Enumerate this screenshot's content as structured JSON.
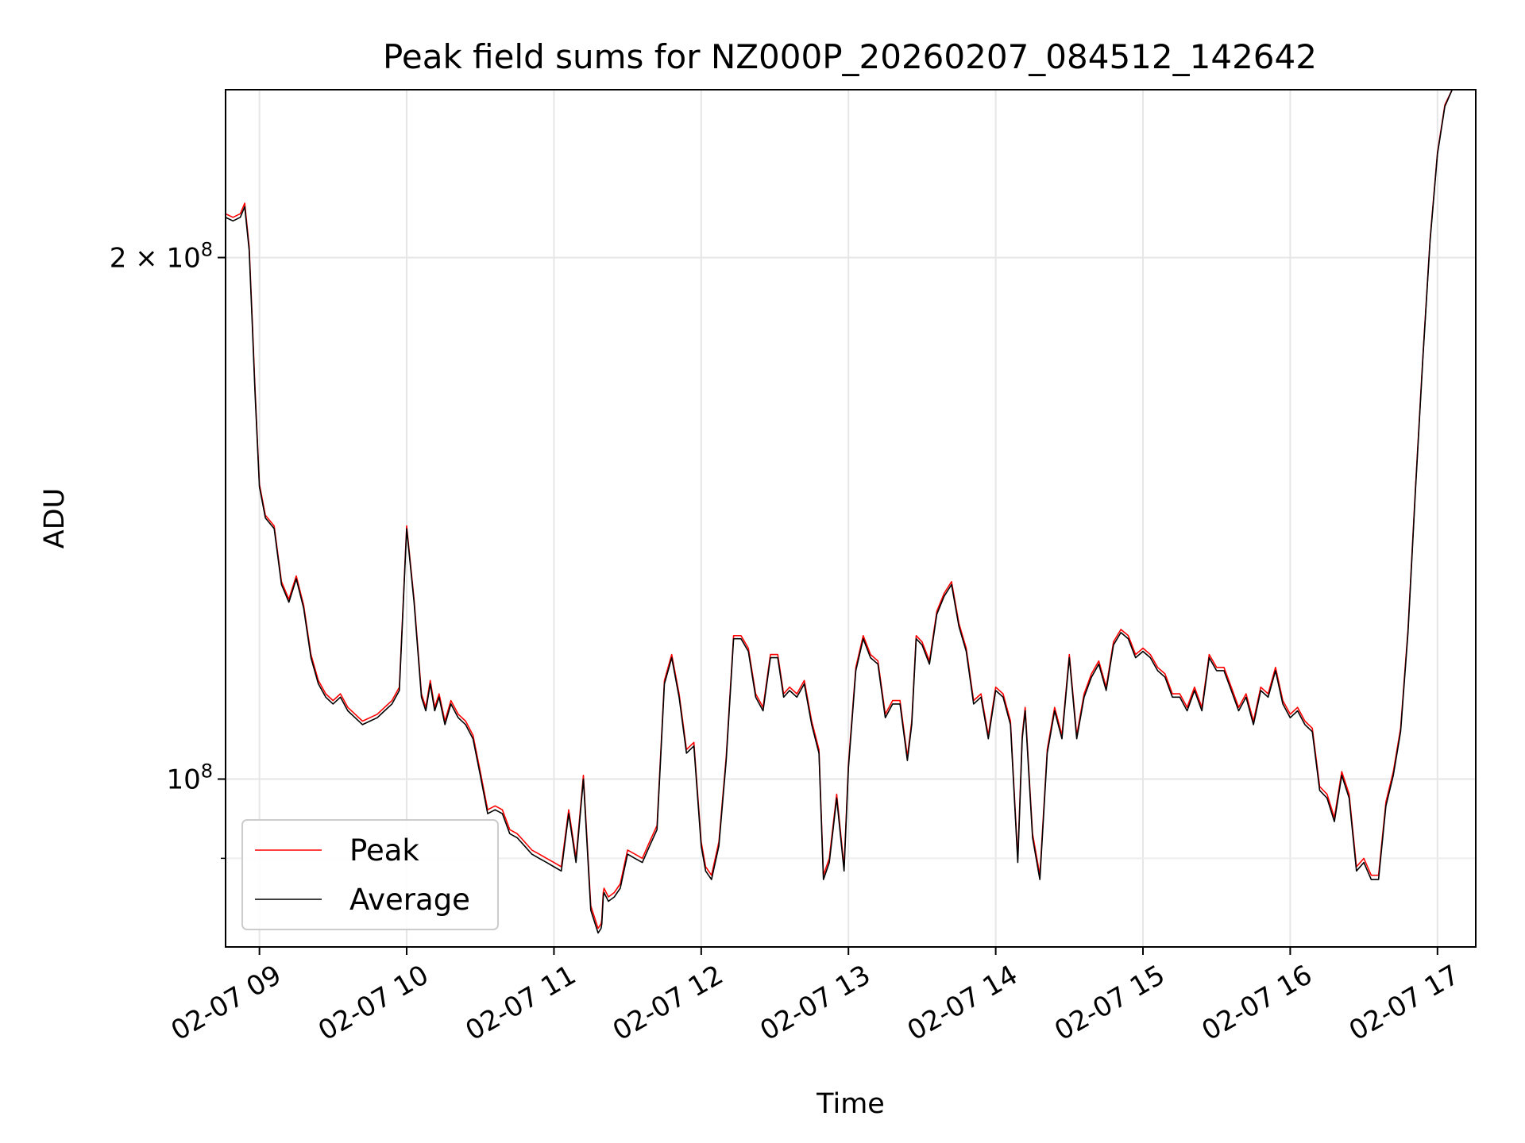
{
  "chart_data": {
    "type": "line",
    "title": "Peak field sums for NZ000P_20260207_084512_142642",
    "xlabel": "Time",
    "ylabel": "ADU",
    "yscale": "log",
    "xlim": [
      8.77,
      17.26
    ],
    "ylim": [
      80000000,
      250000000
    ],
    "x_ticks": [
      {
        "label": "02-07 09",
        "value": 9
      },
      {
        "label": "02-07 10",
        "value": 10
      },
      {
        "label": "02-07 11",
        "value": 11
      },
      {
        "label": "02-07 12",
        "value": 12
      },
      {
        "label": "02-07 13",
        "value": 13
      },
      {
        "label": "02-07 14",
        "value": 14
      },
      {
        "label": "02-07 15",
        "value": 15
      },
      {
        "label": "02-07 16",
        "value": 16
      },
      {
        "label": "02-07 17",
        "value": 17
      }
    ],
    "y_ticks": [
      {
        "label_base": "2 × 10",
        "label_exp": "8",
        "value": 200000000
      },
      {
        "label_base": "10",
        "label_exp": "8",
        "value": 100000000
      }
    ],
    "y_minor_ticks": [
      90000000
    ],
    "grid": true,
    "legend": "lower-left",
    "series": [
      {
        "name": "Peak",
        "color": "#ff0000",
        "x": [
          8.77,
          8.82,
          8.87,
          8.9,
          8.93,
          8.95,
          8.97,
          9.0,
          9.04,
          9.1,
          9.15,
          9.2,
          9.25,
          9.3,
          9.35,
          9.4,
          9.45,
          9.5,
          9.55,
          9.6,
          9.65,
          9.7,
          9.75,
          9.8,
          9.85,
          9.9,
          9.95,
          10.0,
          10.05,
          10.1,
          10.13,
          10.16,
          10.19,
          10.22,
          10.26,
          10.3,
          10.35,
          10.4,
          10.45,
          10.5,
          10.55,
          10.6,
          10.65,
          10.7,
          10.75,
          10.8,
          10.85,
          10.9,
          10.95,
          11.0,
          11.05,
          11.1,
          11.15,
          11.2,
          11.25,
          11.3,
          11.32,
          11.325,
          11.33,
          11.335,
          11.34,
          11.37,
          11.41,
          11.45,
          11.5,
          11.55,
          11.6,
          11.65,
          11.7,
          11.75,
          11.8,
          11.85,
          11.9,
          11.95,
          12.0,
          12.03,
          12.07,
          12.12,
          12.17,
          12.22,
          12.27,
          12.32,
          12.37,
          12.42,
          12.47,
          12.52,
          12.56,
          12.6,
          12.65,
          12.7,
          12.75,
          12.8,
          12.83,
          12.87,
          12.92,
          12.97,
          13.0,
          13.05,
          13.1,
          13.15,
          13.2,
          13.25,
          13.3,
          13.35,
          13.4,
          13.43,
          13.46,
          13.5,
          13.55,
          13.6,
          13.65,
          13.7,
          13.75,
          13.8,
          13.85,
          13.9,
          13.95,
          14.0,
          14.05,
          14.1,
          14.15,
          14.18,
          14.2,
          14.25,
          14.3,
          14.35,
          14.4,
          14.45,
          14.5,
          14.55,
          14.6,
          14.65,
          14.7,
          14.75,
          14.8,
          14.85,
          14.9,
          14.95,
          15.0,
          15.05,
          15.1,
          15.15,
          15.2,
          15.25,
          15.3,
          15.35,
          15.4,
          15.45,
          15.5,
          15.55,
          15.6,
          15.65,
          15.7,
          15.75,
          15.8,
          15.85,
          15.9,
          15.95,
          16.0,
          16.05,
          16.1,
          16.15,
          16.2,
          16.25,
          16.3,
          16.35,
          16.4,
          16.45,
          16.5,
          16.55,
          16.6,
          16.65,
          16.7,
          16.75,
          16.8,
          16.85,
          16.9,
          16.95,
          17.0,
          17.05,
          17.1,
          17.15,
          17.26
        ],
        "y": [
          212000000,
          211000000,
          212000000,
          215000000,
          203000000,
          185000000,
          168000000,
          148000000,
          142000000,
          140000000,
          130000000,
          127000000,
          131000000,
          126000000,
          118000000,
          114000000,
          112000000,
          111000000,
          112000000,
          110000000,
          109000000,
          108000000,
          108500000,
          109000000,
          110000000,
          111000000,
          113000000,
          140000000,
          127000000,
          112000000,
          110000000,
          114000000,
          110000000,
          112000000,
          108000000,
          111000000,
          109000000,
          108000000,
          106000000,
          101000000,
          96000000,
          96500000,
          96000000,
          93500000,
          93000000,
          92000000,
          91000000,
          90500000,
          90000000,
          89500000,
          89000000,
          96000000,
          90000000,
          100500000,
          84500000,
          82000000,
          82500000,
          83000000,
          84500000,
          86000000,
          86500000,
          85500000,
          86000000,
          87000000,
          91000000,
          90500000,
          90000000,
          92000000,
          94000000,
          114000000,
          118000000,
          112000000,
          104000000,
          105000000,
          92000000,
          89000000,
          88000000,
          92000000,
          103000000,
          121000000,
          121000000,
          119000000,
          112000000,
          110000000,
          118000000,
          118000000,
          112000000,
          113000000,
          112000000,
          114000000,
          108000000,
          104000000,
          88000000,
          90000000,
          98000000,
          89000000,
          102000000,
          116000000,
          121000000,
          118000000,
          117000000,
          109000000,
          111000000,
          111000000,
          103000000,
          108000000,
          121000000,
          120000000,
          117000000,
          125000000,
          128000000,
          130000000,
          123000000,
          119000000,
          111000000,
          112000000,
          106000000,
          113000000,
          112000000,
          108000000,
          90000000,
          106000000,
          110000000,
          93000000,
          88000000,
          104000000,
          110000000,
          106000000,
          118000000,
          106000000,
          112000000,
          115000000,
          117000000,
          113000000,
          120000000,
          122000000,
          121000000,
          118000000,
          119000000,
          118000000,
          116000000,
          115000000,
          112000000,
          112000000,
          110000000,
          113000000,
          110000000,
          118000000,
          116000000,
          116000000,
          113000000,
          110000000,
          112000000,
          108000000,
          113000000,
          112000000,
          116000000,
          111000000,
          109000000,
          110000000,
          108000000,
          107000000,
          99000000,
          98000000,
          95000000,
          101000000,
          98000000,
          89000000,
          90000000,
          88000000,
          88000000,
          97000000,
          101000000,
          107000000,
          122000000,
          147000000,
          175000000,
          205000000,
          230000000,
          245000000,
          250000000,
          250000000,
          250000000
        ]
      },
      {
        "name": "Average",
        "color": "#000000",
        "x": [
          8.77,
          8.82,
          8.87,
          8.9,
          8.93,
          8.95,
          8.97,
          9.0,
          9.04,
          9.1,
          9.15,
          9.2,
          9.25,
          9.3,
          9.35,
          9.4,
          9.45,
          9.5,
          9.55,
          9.6,
          9.65,
          9.7,
          9.75,
          9.8,
          9.85,
          9.9,
          9.95,
          10.0,
          10.05,
          10.1,
          10.13,
          10.16,
          10.19,
          10.22,
          10.26,
          10.3,
          10.35,
          10.4,
          10.45,
          10.5,
          10.55,
          10.6,
          10.65,
          10.7,
          10.75,
          10.8,
          10.85,
          10.9,
          10.95,
          11.0,
          11.05,
          11.1,
          11.15,
          11.2,
          11.25,
          11.3,
          11.32,
          11.325,
          11.33,
          11.335,
          11.34,
          11.37,
          11.41,
          11.45,
          11.5,
          11.55,
          11.6,
          11.65,
          11.7,
          11.75,
          11.8,
          11.85,
          11.9,
          11.95,
          12.0,
          12.03,
          12.07,
          12.12,
          12.17,
          12.22,
          12.27,
          12.32,
          12.37,
          12.42,
          12.47,
          12.52,
          12.56,
          12.6,
          12.65,
          12.7,
          12.75,
          12.8,
          12.83,
          12.87,
          12.92,
          12.97,
          13.0,
          13.05,
          13.1,
          13.15,
          13.2,
          13.25,
          13.3,
          13.35,
          13.4,
          13.43,
          13.46,
          13.5,
          13.55,
          13.6,
          13.65,
          13.7,
          13.75,
          13.8,
          13.85,
          13.9,
          13.95,
          14.0,
          14.05,
          14.1,
          14.15,
          14.18,
          14.2,
          14.25,
          14.3,
          14.35,
          14.4,
          14.45,
          14.5,
          14.55,
          14.6,
          14.65,
          14.7,
          14.75,
          14.8,
          14.85,
          14.9,
          14.95,
          15.0,
          15.05,
          15.1,
          15.15,
          15.2,
          15.25,
          15.3,
          15.35,
          15.4,
          15.45,
          15.5,
          15.55,
          15.6,
          15.65,
          15.7,
          15.75,
          15.8,
          15.85,
          15.9,
          15.95,
          16.0,
          16.05,
          16.1,
          16.15,
          16.2,
          16.25,
          16.3,
          16.35,
          16.4,
          16.45,
          16.5,
          16.55,
          16.6,
          16.65,
          16.7,
          16.75,
          16.8,
          16.85,
          16.9,
          16.95,
          17.0,
          17.05,
          17.1,
          17.15,
          17.26
        ],
        "y": [
          211000000,
          210000000,
          211000000,
          214000000,
          202000000,
          184000000,
          167000000,
          147500000,
          141500000,
          139500000,
          129500000,
          126500000,
          130500000,
          125500000,
          117500000,
          113500000,
          111500000,
          110500000,
          111500000,
          109500000,
          108500000,
          107500000,
          108000000,
          108500000,
          109500000,
          110500000,
          112500000,
          139500000,
          126500000,
          111500000,
          109500000,
          113500000,
          109500000,
          111500000,
          107500000,
          110500000,
          108500000,
          107500000,
          105500000,
          100500000,
          95500000,
          96000000,
          95500000,
          93000000,
          92500000,
          91500000,
          90500000,
          90000000,
          89500000,
          89000000,
          88500000,
          95500000,
          89500000,
          100000000,
          84000000,
          81500000,
          82000000,
          82500000,
          84000000,
          85500000,
          86000000,
          85000000,
          85500000,
          86500000,
          90500000,
          90000000,
          89500000,
          91500000,
          93500000,
          113500000,
          117500000,
          111500000,
          103500000,
          104500000,
          91500000,
          88500000,
          87500000,
          91500000,
          102500000,
          120500000,
          120500000,
          118500000,
          111500000,
          109500000,
          117500000,
          117500000,
          111500000,
          112500000,
          111500000,
          113500000,
          107500000,
          103500000,
          87500000,
          89500000,
          97500000,
          88500000,
          101500000,
          115500000,
          120500000,
          117500000,
          116500000,
          108500000,
          110500000,
          110500000,
          102500000,
          107500000,
          120500000,
          119500000,
          116500000,
          124500000,
          127500000,
          129500000,
          122500000,
          118500000,
          110500000,
          111500000,
          105500000,
          112500000,
          111500000,
          107500000,
          89500000,
          105500000,
          109500000,
          92500000,
          87500000,
          103500000,
          109500000,
          105500000,
          117500000,
          105500000,
          111500000,
          114500000,
          116500000,
          112500000,
          119500000,
          121500000,
          120500000,
          117500000,
          118500000,
          117500000,
          115500000,
          114500000,
          111500000,
          111500000,
          109500000,
          112500000,
          109500000,
          117500000,
          115500000,
          115500000,
          112500000,
          109500000,
          111500000,
          107500000,
          112500000,
          111500000,
          115500000,
          110500000,
          108500000,
          109500000,
          107500000,
          106500000,
          98500000,
          97500000,
          94500000,
          100500000,
          97500000,
          88500000,
          89500000,
          87500000,
          87500000,
          96500000,
          100500000,
          106500000,
          121500000,
          146500000,
          174500000,
          204500000,
          229500000,
          244500000,
          250000000,
          250000000,
          250000000
        ]
      }
    ]
  }
}
